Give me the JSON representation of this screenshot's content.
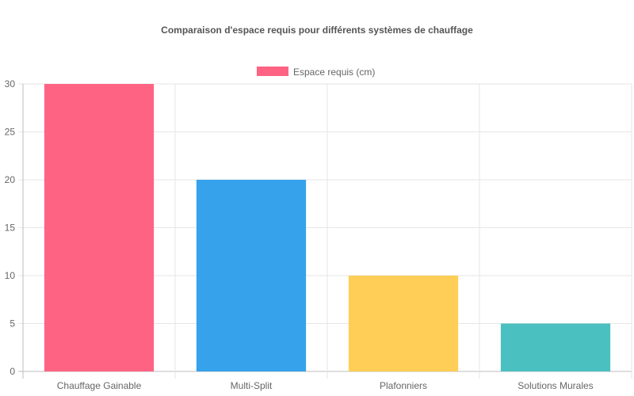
{
  "chart_data": {
    "type": "bar",
    "title": "Comparaison d'espace requis pour différents systèmes de chauffage",
    "categories": [
      "Chauffage Gainable",
      "Multi-Split",
      "Plafonniers",
      "Solutions Murales"
    ],
    "series": [
      {
        "name": "Espace requis (cm)",
        "values": [
          30,
          20,
          10,
          5
        ],
        "colors": [
          "#ff6384",
          "#36a2eb",
          "#ffce56",
          "#4bc0c0"
        ]
      }
    ],
    "yticks": [
      0,
      5,
      10,
      15,
      20,
      25,
      30
    ],
    "ylim": [
      0,
      30
    ],
    "legend_position": "top",
    "grid": true
  }
}
